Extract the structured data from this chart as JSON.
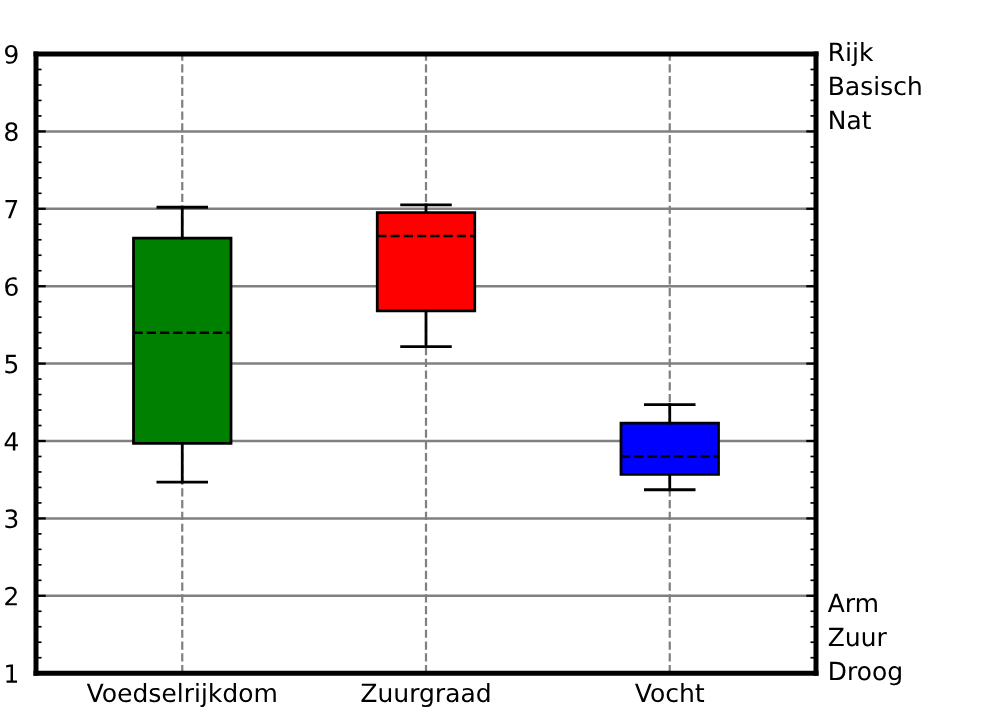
{
  "chart_data": {
    "type": "box",
    "categories": [
      "Voedselrijkdom",
      "Zuurgraad",
      "Vocht"
    ],
    "boxes": [
      {
        "low": 3.47,
        "q1": 3.97,
        "median": 5.4,
        "q3": 6.62,
        "high": 7.02
      },
      {
        "low": 5.22,
        "q1": 5.68,
        "median": 6.65,
        "q3": 6.95,
        "high": 7.05
      },
      {
        "low": 3.37,
        "q1": 3.57,
        "median": 3.8,
        "q3": 4.23,
        "high": 4.47
      }
    ],
    "colors": [
      "#008000",
      "#ff0000",
      "#0000ff"
    ],
    "ylim": [
      1,
      9
    ],
    "yticks": [
      1,
      2,
      3,
      4,
      5,
      6,
      7,
      8,
      9
    ],
    "grid": true,
    "annotations": [
      "Rijk",
      "Basisch",
      "Nat",
      "Arm",
      "Zuur",
      "Droog"
    ]
  }
}
